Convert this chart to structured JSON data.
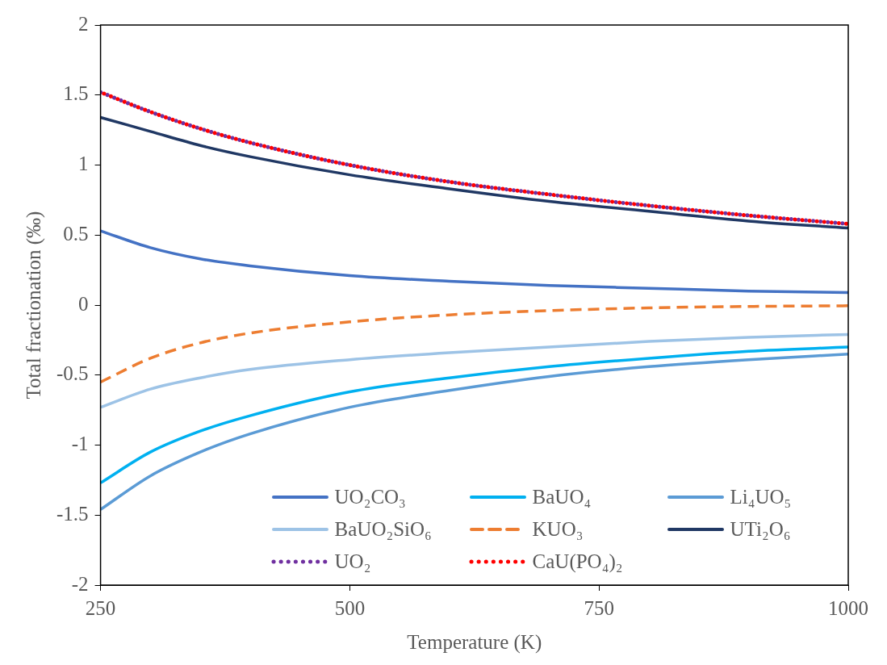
{
  "chart_data": {
    "type": "line",
    "xlabel": "Temperature (K)",
    "ylabel": "Total fractionation (‰)",
    "x": [
      250,
      300,
      350,
      400,
      500,
      600,
      700,
      800,
      900,
      1000
    ],
    "xlim": [
      250,
      1000
    ],
    "xticks": [
      250,
      500,
      750,
      1000
    ],
    "ylim": [
      -2,
      2
    ],
    "yticks": [
      -2,
      -1.5,
      -1,
      -0.5,
      0,
      0.5,
      1,
      1.5,
      2
    ],
    "grid": false,
    "legend": "bottom",
    "marker": "none",
    "series": [
      {
        "name": "UO₂CO₃",
        "color": "#4472c4",
        "line_style": "solid",
        "values": [
          0.53,
          0.41,
          0.33,
          0.28,
          0.21,
          0.17,
          0.14,
          0.12,
          0.1,
          0.09
        ]
      },
      {
        "name": "BaUO₄",
        "color": "#00b0f0",
        "line_style": "solid",
        "values": [
          -1.27,
          -1.05,
          -0.9,
          -0.79,
          -0.62,
          -0.52,
          -0.44,
          -0.38,
          -0.33,
          -0.3
        ]
      },
      {
        "name": "Li₄UO₅",
        "color": "#5b9bd5",
        "line_style": "solid",
        "values": [
          -1.46,
          -1.22,
          -1.05,
          -0.92,
          -0.73,
          -0.61,
          -0.51,
          -0.44,
          -0.39,
          -0.35
        ]
      },
      {
        "name": "BaUO₂SiO₆",
        "color": "#9dc3e6",
        "line_style": "solid",
        "values": [
          -0.73,
          -0.6,
          -0.52,
          -0.46,
          -0.39,
          -0.34,
          -0.3,
          -0.26,
          -0.23,
          -0.21
        ]
      },
      {
        "name": "KUO₃",
        "color": "#ed7d31",
        "line_style": "dashed",
        "values": [
          -0.55,
          -0.38,
          -0.27,
          -0.2,
          -0.12,
          -0.07,
          -0.04,
          -0.02,
          -0.01,
          -0.005
        ]
      },
      {
        "name": "UTi₂O₆",
        "color": "#203864",
        "line_style": "solid",
        "values": [
          1.34,
          1.24,
          1.14,
          1.06,
          0.93,
          0.83,
          0.74,
          0.67,
          0.6,
          0.55
        ]
      },
      {
        "name": "UO₂",
        "color": "#7030a0",
        "line_style": "dotted",
        "values": [
          1.52,
          1.38,
          1.26,
          1.16,
          1.0,
          0.88,
          0.79,
          0.71,
          0.64,
          0.58
        ]
      },
      {
        "name": "CaU(PO₄)₂",
        "color": "#ff0000",
        "line_style": "dotted",
        "values": [
          1.52,
          1.38,
          1.26,
          1.16,
          1.0,
          0.88,
          0.79,
          0.71,
          0.64,
          0.58
        ]
      }
    ]
  }
}
